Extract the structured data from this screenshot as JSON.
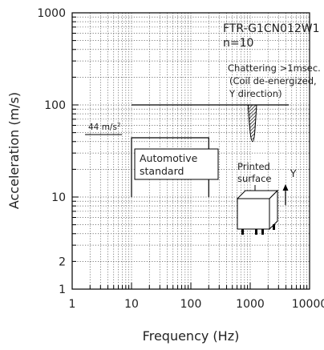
{
  "chart_data": {
    "type": "line",
    "xlabel": "Frequency (Hz)",
    "ylabel": "Acceleration (m/s)",
    "x_scale": "log",
    "y_scale": "log",
    "xlim": [
      1,
      10000
    ],
    "ylim": [
      1,
      1000
    ],
    "grid": true,
    "x_ticks": [
      {
        "value": 1,
        "label": "1"
      },
      {
        "value": 10,
        "label": "10"
      },
      {
        "value": 100,
        "label": "100"
      },
      {
        "value": 1000,
        "label": "1000"
      },
      {
        "value": 10000,
        "label": "10000"
      }
    ],
    "y_ticks": [
      {
        "value": 1,
        "label": "1"
      },
      {
        "value": 2,
        "label": "2"
      },
      {
        "value": 10,
        "label": "10"
      },
      {
        "value": 100,
        "label": "100"
      },
      {
        "value": 1000,
        "label": "1000"
      }
    ],
    "series": [
      {
        "x": [
          10,
          4500
        ],
        "y": [
          100,
          100
        ]
      },
      {
        "x": [
          10,
          10,
          200,
          200
        ],
        "y": [
          10,
          44,
          44,
          10
        ]
      }
    ],
    "chattering_dip": {
      "x_center": 1100,
      "x_half_width": 180,
      "y_top": 100,
      "y_bottom": 40
    },
    "model_label": "FTR-G1CN012W1",
    "n_label": "n=10",
    "chatter_note": [
      "Chattering >1msec.",
      "(Coil de-energized,",
      "Y direction)"
    ],
    "level_label": "44 m/s",
    "level_superscript": "2",
    "standard_label": [
      "Automotive",
      "standard"
    ],
    "relay_label": [
      "Printed",
      "surface"
    ],
    "axis_y_letter": "Y"
  }
}
